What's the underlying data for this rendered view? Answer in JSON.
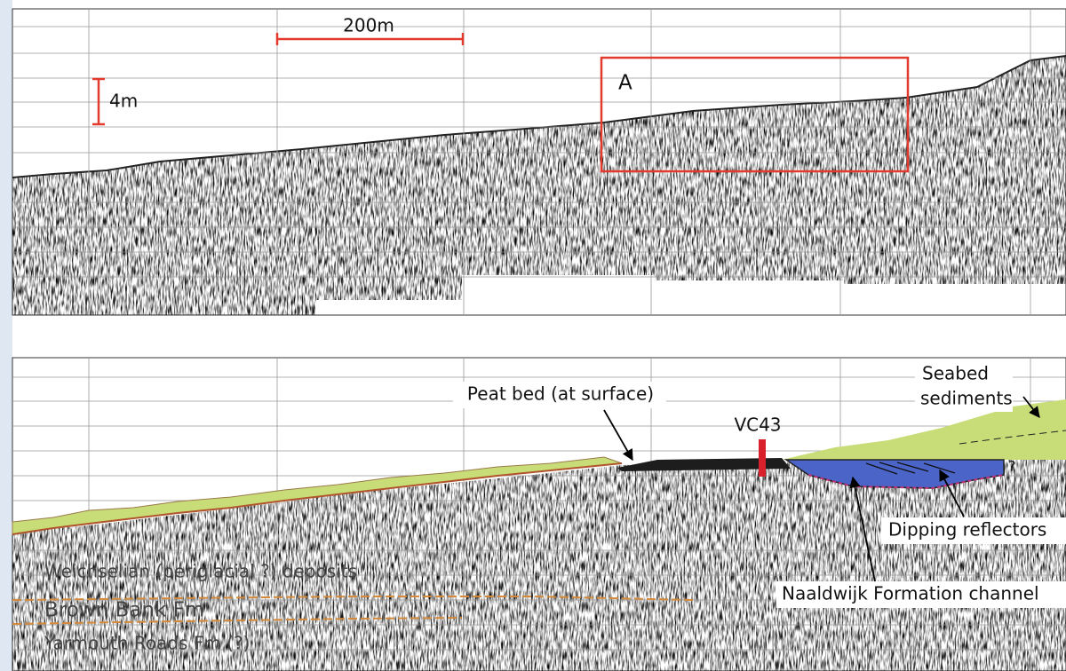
{
  "top_panel": {
    "scale_horizontal": "200m",
    "scale_vertical": "4m",
    "box_label": "A"
  },
  "bottom_panel": {
    "peat_label": "Peat bed (at surface)",
    "core_label": "VC43",
    "seabed_label_1": "Seabed",
    "seabed_label_2": "sediments",
    "question": "?",
    "dipping_label": "Dipping reflectors",
    "channel_label": "Naaldwijk Formation channel",
    "unit_1": "Weichselian (periglacial ?) deposits",
    "unit_2": "Brown Bank Fm",
    "unit_3": "Yarmouth Roads Fm (?)"
  }
}
